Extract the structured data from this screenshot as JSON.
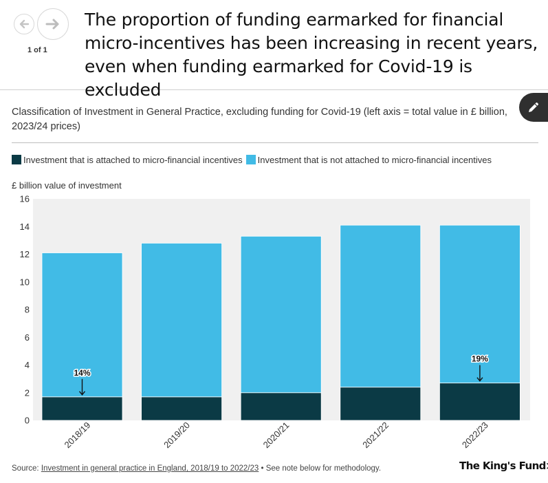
{
  "header": {
    "page_count": "1 of 1",
    "title": "The proportion of funding earmarked for financial micro-incentives has been increasing in recent years, even when funding earmarked for Covid-19 is excluded",
    "prev_icon": "arrow-left-icon",
    "next_icon": "arrow-right-icon",
    "edit_icon": "pencil-icon"
  },
  "subtitle": "Classification of Investment in General Practice, excluding funding for Covid-19 (left axis = total value in £ billion, 2023/24 prices)",
  "source": {
    "prefix": "Source: ",
    "link_text": "Investment in general practice in England, 2018/19 to 2022/23",
    "suffix": " • See note below for methodology."
  },
  "logo": "The King's Fund>",
  "chart_data": {
    "type": "bar",
    "stacked": true,
    "categories": [
      "2018/19",
      "2019/20",
      "2020/21",
      "2021/22",
      "2022/23"
    ],
    "series": [
      {
        "name": "Investment that is attached to micro-financial incentives",
        "color": "#0b3a45",
        "values": [
          1.7,
          1.7,
          2.0,
          2.4,
          2.7
        ]
      },
      {
        "name": "Investment that is not attached to micro-financial incentives",
        "color": "#41bbe6",
        "values": [
          10.4,
          11.1,
          11.3,
          11.7,
          11.4
        ]
      }
    ],
    "ylabel": "£ billion value of investment",
    "ylim": [
      0,
      16
    ],
    "yticks": [
      0,
      2,
      4,
      6,
      8,
      10,
      12,
      14,
      16
    ],
    "grid": false,
    "legend_position": "top-left",
    "annotations": [
      {
        "category": "2018/19",
        "text": "14%"
      },
      {
        "category": "2022/23",
        "text": "19%"
      }
    ]
  }
}
